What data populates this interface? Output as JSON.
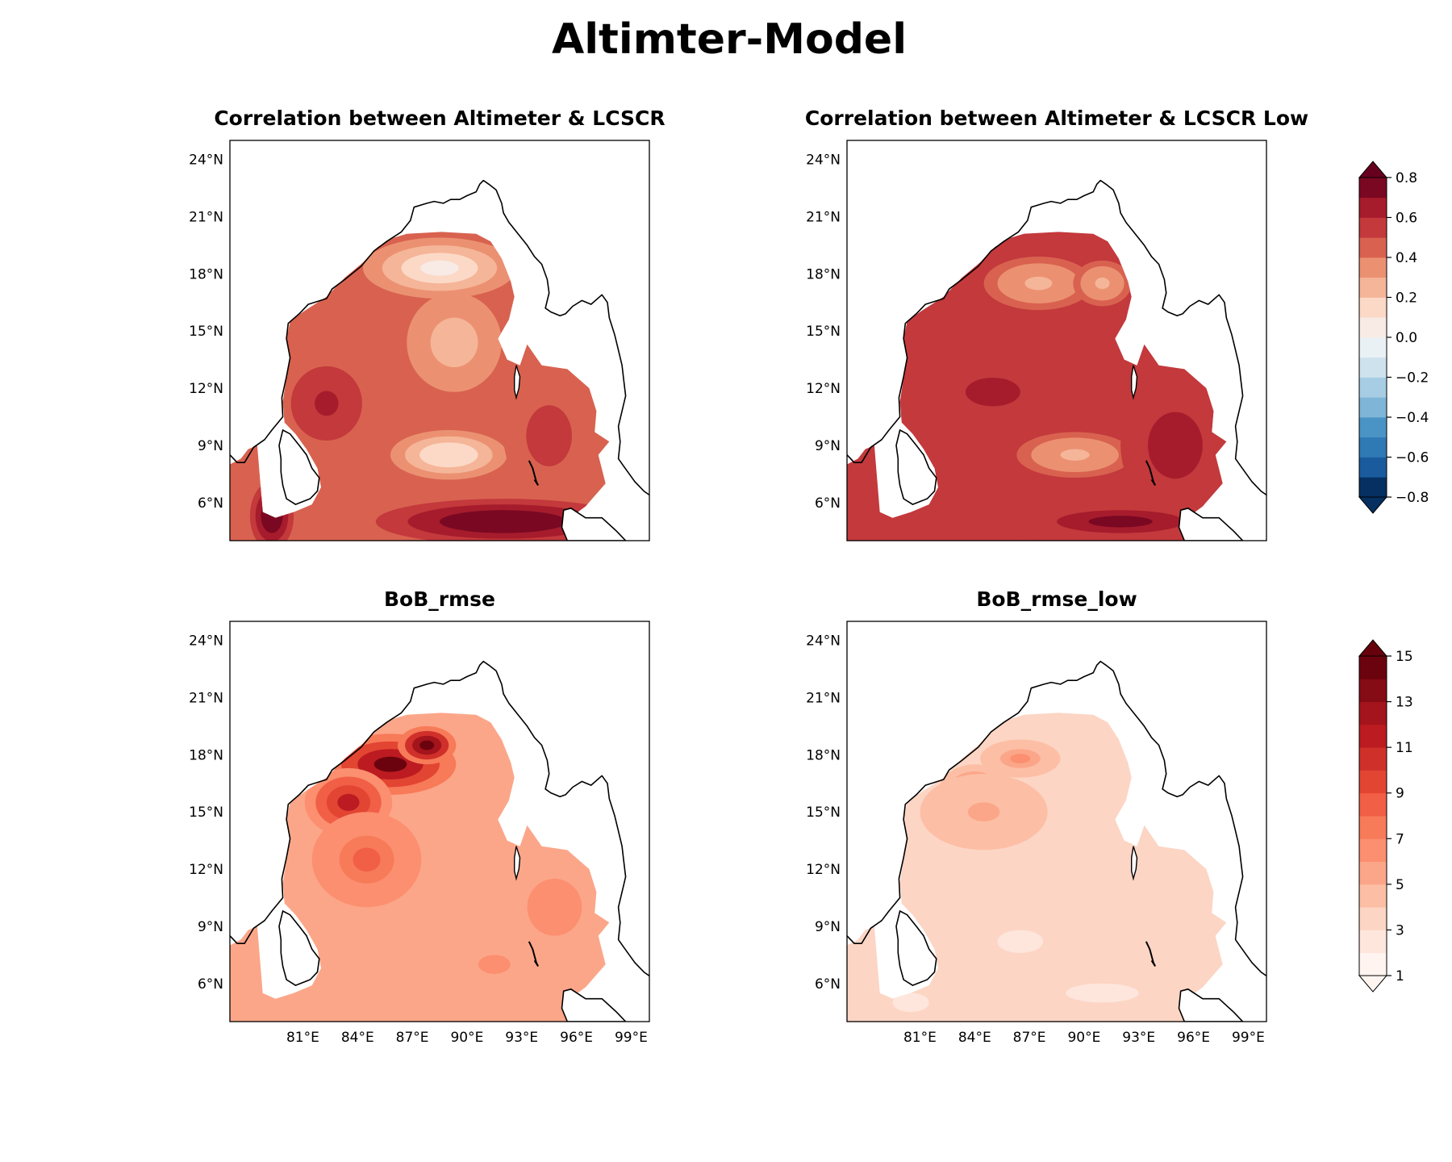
{
  "figure": {
    "title": "Altimter-Model"
  },
  "panels": [
    {
      "id": "corr",
      "title": "Correlation between Altimeter & LCSCR",
      "colormap": "corr",
      "shows_lon_ticks": false,
      "blobs": [
        {
          "lon": 88.5,
          "lat": 18.3,
          "rx": 4.2,
          "ry": 1.6,
          "value": 0.05
        },
        {
          "lon": 89.3,
          "lat": 14.4,
          "rx": 2.6,
          "ry": 2.6,
          "value": 0.25
        },
        {
          "lon": 89.0,
          "lat": 8.5,
          "rx": 3.2,
          "ry": 1.3,
          "value": 0.1
        },
        {
          "lon": 82.3,
          "lat": 11.2,
          "rx": 2.6,
          "ry": 2.6,
          "value": 0.65
        },
        {
          "lon": 94.5,
          "lat": 9.5,
          "rx": 2.5,
          "ry": 3.2,
          "value": 0.55
        },
        {
          "lon": 92.0,
          "lat": 5.0,
          "rx": 7.0,
          "ry": 1.2,
          "value": 0.8
        },
        {
          "lon": 79.3,
          "lat": 5.3,
          "rx": 1.2,
          "ry": 1.8,
          "value": 0.8
        }
      ]
    },
    {
      "id": "corr-low",
      "title": "Correlation between Altimeter & LCSCR Low",
      "colormap": "corr",
      "shows_lon_ticks": false,
      "blobs": [
        {
          "lon": 87.5,
          "lat": 17.5,
          "rx": 3.0,
          "ry": 1.4,
          "value": 0.25
        },
        {
          "lon": 91.0,
          "lat": 17.5,
          "rx": 1.6,
          "ry": 1.2,
          "value": 0.25
        },
        {
          "lon": 89.5,
          "lat": 8.5,
          "rx": 3.2,
          "ry": 1.2,
          "value": 0.25
        },
        {
          "lon": 85.0,
          "lat": 11.8,
          "rx": 3.0,
          "ry": 1.5,
          "value": 0.65
        },
        {
          "lon": 86.0,
          "lat": 15.2,
          "rx": 1.5,
          "ry": 1.0,
          "value": 0.6
        },
        {
          "lon": 95.0,
          "lat": 9.0,
          "rx": 3.0,
          "ry": 3.5,
          "value": 0.65
        },
        {
          "lon": 92.0,
          "lat": 5.0,
          "rx": 7.0,
          "ry": 1.2,
          "value": 0.7
        }
      ]
    },
    {
      "id": "rmse",
      "title": "BoB_rmse",
      "colormap": "rmse",
      "shows_lon_ticks": true,
      "blobs": [
        {
          "lon": 85.8,
          "lat": 17.5,
          "rx": 3.6,
          "ry": 1.6,
          "value": 14.0
        },
        {
          "lon": 87.8,
          "lat": 18.5,
          "rx": 1.6,
          "ry": 1.0,
          "value": 15.0
        },
        {
          "lon": 83.5,
          "lat": 15.5,
          "rx": 2.4,
          "ry": 1.8,
          "value": 11.0
        },
        {
          "lon": 84.5,
          "lat": 12.5,
          "rx": 3.0,
          "ry": 2.5,
          "value": 8.0
        },
        {
          "lon": 94.8,
          "lat": 10.0,
          "rx": 2.0,
          "ry": 2.0,
          "value": 6.5
        },
        {
          "lon": 91.5,
          "lat": 7.0,
          "rx": 3.5,
          "ry": 2.0,
          "value": 6.0
        }
      ]
    },
    {
      "id": "rmse-low",
      "title": "BoB_rmse_low",
      "colormap": "rmse",
      "shows_lon_ticks": true,
      "blobs": [
        {
          "lon": 84.0,
          "lat": 16.0,
          "rx": 2.0,
          "ry": 1.5,
          "value": 7.5
        },
        {
          "lon": 86.5,
          "lat": 17.8,
          "rx": 2.2,
          "ry": 1.0,
          "value": 6.0
        },
        {
          "lon": 84.5,
          "lat": 15.0,
          "rx": 3.5,
          "ry": 2.0,
          "value": 5.0
        },
        {
          "lon": 86.5,
          "lat": 8.2,
          "rx": 2.5,
          "ry": 1.2,
          "value": 2.2
        },
        {
          "lon": 91.0,
          "lat": 5.5,
          "rx": 4.0,
          "ry": 1.0,
          "value": 2.2
        },
        {
          "lon": 80.5,
          "lat": 5.0,
          "rx": 2.0,
          "ry": 1.0,
          "value": 2.2
        }
      ]
    }
  ],
  "panel_base_values": {
    "corr": 0.4,
    "corr-low": 0.5,
    "rmse": 5.5,
    "rmse-low": 3.8
  },
  "map_extent": {
    "lon": [
      77,
      100
    ],
    "lat": [
      4,
      25
    ]
  },
  "lon_ticks": [
    81,
    84,
    87,
    90,
    93,
    96,
    99
  ],
  "lon_tick_labels": [
    "81°E",
    "84°E",
    "87°E",
    "90°E",
    "93°E",
    "96°E",
    "99°E"
  ],
  "lat_ticks": [
    6,
    9,
    12,
    15,
    18,
    21,
    24
  ],
  "lat_tick_labels": [
    "6°N",
    "9°N",
    "12°N",
    "15°N",
    "18°N",
    "21°N",
    "24°N"
  ],
  "colorbars": {
    "corr": {
      "labels": [
        "0.8",
        "0.6",
        "0.4",
        "0.2",
        "0.0",
        "−0.2",
        "−0.4",
        "−0.6",
        "−0.8"
      ],
      "label_values": [
        0.8,
        0.6,
        0.4,
        0.2,
        0.0,
        -0.2,
        -0.4,
        -0.6,
        -0.8
      ],
      "range": [
        -0.8,
        0.8
      ],
      "levels": 16,
      "extend": "both",
      "colors": [
        "#053061",
        "#1a5b9e",
        "#2f79b5",
        "#4a93c5",
        "#7fb5d7",
        "#a6cde3",
        "#cee2ee",
        "#eaf1f5",
        "#f8ebe5",
        "#fcd9c7",
        "#f5b598",
        "#eb9172",
        "#d8624f",
        "#c3393c",
        "#a61c2c",
        "#7a0822"
      ],
      "over_color": "#67001f",
      "under_color": "#053061"
    },
    "rmse": {
      "labels": [
        "15",
        "13",
        "11",
        "9",
        "7",
        "5",
        "3",
        "1"
      ],
      "label_values": [
        15,
        13,
        11,
        9,
        7,
        5,
        3,
        1
      ],
      "range": [
        1,
        15
      ],
      "levels": 14,
      "extend": "min-max",
      "colors": [
        "#fff4f0",
        "#fee6dd",
        "#fdd5c4",
        "#fcbfa6",
        "#fca689",
        "#fb8f6f",
        "#f77a59",
        "#f15f46",
        "#e34533",
        "#d0302a",
        "#bc1b21",
        "#a4141c",
        "#850b14",
        "#6b030e"
      ],
      "over_color": "#67000d",
      "under_color": "#fff5f0"
    }
  },
  "land_color": "#ffffff",
  "coast_color": "#000000"
}
